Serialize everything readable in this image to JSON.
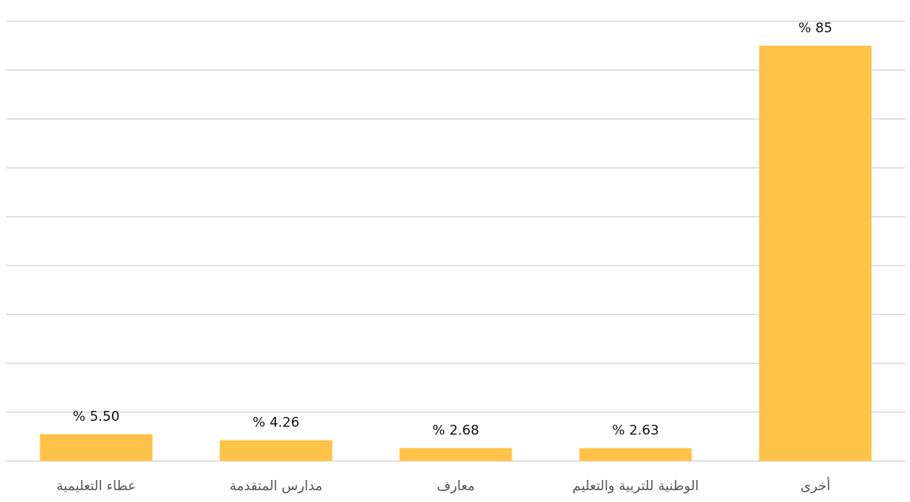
{
  "chart_data": {
    "type": "bar",
    "categories": [
      "عطاء التعليمية",
      "مدارس المتقدمة",
      "معارف",
      "الوطنية للتربية والتعليم",
      "أخرى"
    ],
    "values": [
      5.5,
      4.26,
      2.68,
      2.63,
      85
    ],
    "value_labels": [
      "% 5.50",
      "% 4.26",
      "% 2.68",
      "% 2.63",
      "% 85"
    ],
    "color": "#ffc34a",
    "ylim": [
      0,
      90
    ],
    "yticks": [
      0,
      10,
      20,
      30,
      40,
      50,
      60,
      70,
      80,
      90
    ],
    "grid": true
  }
}
